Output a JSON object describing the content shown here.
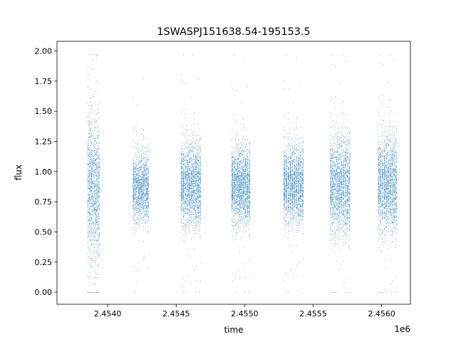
{
  "chart_data": {
    "type": "scatter",
    "title": "1SWASPJ151638.54-195153.5",
    "xlabel": "time",
    "ylabel": "flux",
    "x_offset_label": "1e6",
    "xlim": [
      2.45363,
      2.45621
    ],
    "ylim": [
      -0.1,
      2.08
    ],
    "x_ticks": [
      2.454,
      2.4545,
      2.455,
      2.4555,
      2.456
    ],
    "x_tick_labels": [
      "2.4540",
      "2.4545",
      "2.4550",
      "2.4555",
      "2.4560"
    ],
    "y_ticks": [
      0.0,
      0.25,
      0.5,
      0.75,
      1.0,
      1.25,
      1.5,
      1.75,
      2.0
    ],
    "y_tick_labels": [
      "0.00",
      "0.25",
      "0.50",
      "0.75",
      "1.00",
      "1.25",
      "1.50",
      "1.75",
      "2.00"
    ],
    "grid": false,
    "legend": "none",
    "marker_color": "#1f77b4",
    "observing_seasons": [
      {
        "x_start": 2.45385,
        "x_end": 2.45394,
        "flux_center": 0.85,
        "flux_spread": 0.3,
        "points": 1400
      },
      {
        "x_start": 2.45418,
        "x_end": 2.4543,
        "flux_center": 0.85,
        "flux_spread": 0.14,
        "points": 1500
      },
      {
        "x_start": 2.45453,
        "x_end": 2.45468,
        "flux_center": 0.88,
        "flux_spread": 0.17,
        "points": 2200
      },
      {
        "x_start": 2.4549,
        "x_end": 2.45504,
        "flux_center": 0.87,
        "flux_spread": 0.16,
        "points": 2200
      },
      {
        "x_start": 2.45528,
        "x_end": 2.45543,
        "flux_center": 0.88,
        "flux_spread": 0.16,
        "points": 2400
      },
      {
        "x_start": 2.45562,
        "x_end": 2.45577,
        "flux_center": 0.87,
        "flux_spread": 0.2,
        "points": 3200
      },
      {
        "x_start": 2.45597,
        "x_end": 2.45611,
        "flux_center": 0.88,
        "flux_spread": 0.2,
        "points": 3200
      }
    ]
  }
}
